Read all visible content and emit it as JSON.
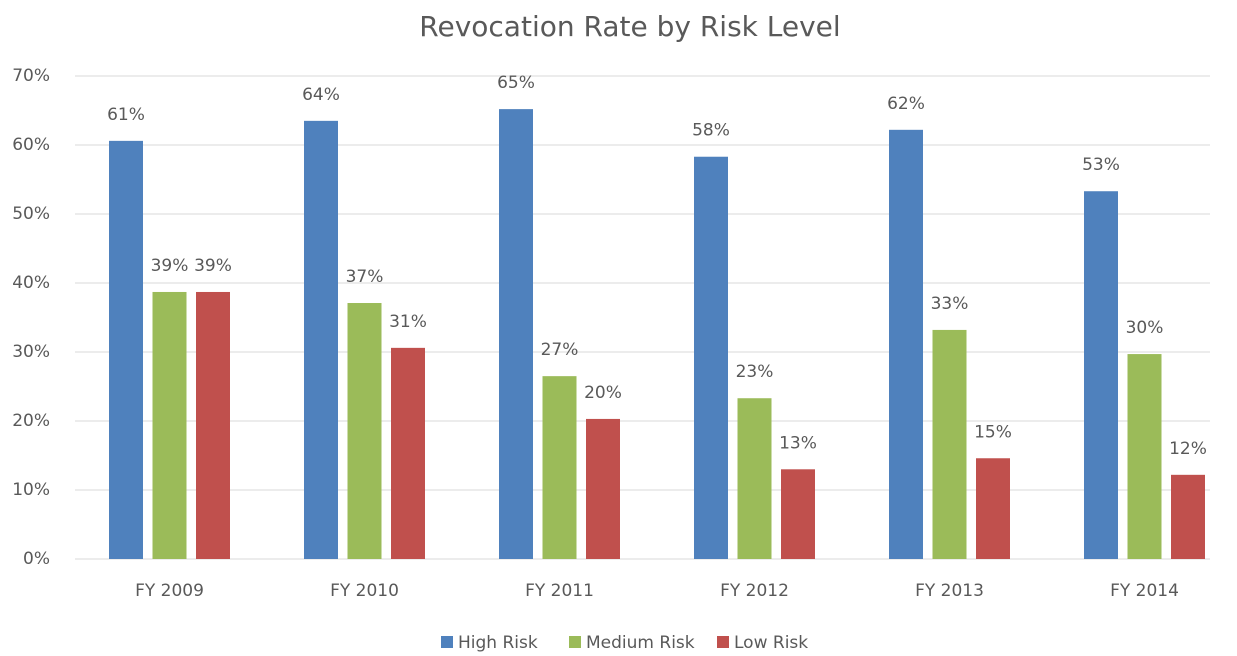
{
  "chart_data": {
    "type": "bar",
    "title": "Revocation Rate by Risk Level",
    "categories": [
      "FY 2009",
      "FY 2010",
      "FY 2011",
      "FY 2012",
      "FY 2013",
      "FY 2014"
    ],
    "series": [
      {
        "name": "High Risk",
        "color": "#4f81bd",
        "values": [
          60.6,
          63.5,
          65.2,
          58.3,
          62.2,
          53.3
        ],
        "value_labels": [
          "61%",
          "64%",
          "65%",
          "58%",
          "62%",
          "53%"
        ]
      },
      {
        "name": "Medium Risk",
        "color": "#9bbb59",
        "values": [
          38.7,
          37.1,
          26.5,
          23.3,
          33.2,
          29.7
        ],
        "value_labels": [
          "39%",
          "37%",
          "27%",
          "23%",
          "33%",
          "30%"
        ]
      },
      {
        "name": "Low Risk",
        "color": "#c0504d",
        "values": [
          38.7,
          30.6,
          20.3,
          13.0,
          14.6,
          12.2
        ],
        "value_labels": [
          "39%",
          "31%",
          "20%",
          "13%",
          "15%",
          "12%"
        ]
      }
    ],
    "ylim": [
      0,
      70
    ],
    "yticks": [
      {
        "value": 0,
        "label": "0%"
      },
      {
        "value": 10,
        "label": "10%"
      },
      {
        "value": 20,
        "label": "20%"
      },
      {
        "value": 30,
        "label": "30%"
      },
      {
        "value": 40,
        "label": "40%"
      },
      {
        "value": 50,
        "label": "50%"
      },
      {
        "value": 60,
        "label": "60%"
      },
      {
        "value": 70,
        "label": "70%"
      }
    ],
    "grid": true,
    "legend": "bottom"
  }
}
